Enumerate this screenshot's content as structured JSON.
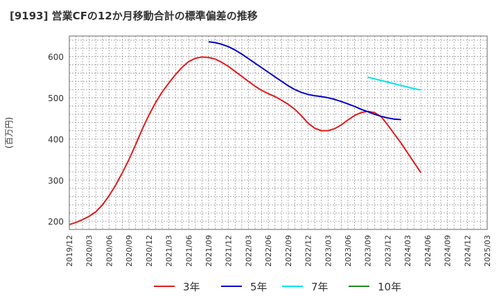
{
  "chart_data": {
    "type": "line",
    "title": "[9193]  営業CFの12か月移動合計の標準偏差の推移",
    "ylabel": "(百万円)",
    "xlabel": "",
    "ylim": [
      180,
      650
    ],
    "yticks": [
      200,
      300,
      400,
      500,
      600
    ],
    "x_start": "2019/12",
    "x_end": "2025/03",
    "xtick_labels": [
      "2019/12",
      "2020/03",
      "2020/06",
      "2020/09",
      "2020/12",
      "2021/03",
      "2021/06",
      "2021/09",
      "2021/12",
      "2022/03",
      "2022/06",
      "2022/09",
      "2022/12",
      "2023/03",
      "2023/06",
      "2023/09",
      "2023/12",
      "2024/03",
      "2024/06",
      "2024/09",
      "2024/12",
      "2025/03"
    ],
    "grid": true,
    "legend_position": "bottom",
    "series": [
      {
        "name": "3年",
        "color": "#e41a1c",
        "points": [
          [
            "2019/12",
            192
          ],
          [
            "2020/01",
            197
          ],
          [
            "2020/02",
            204
          ],
          [
            "2020/03",
            212
          ],
          [
            "2020/04",
            223
          ],
          [
            "2020/05",
            240
          ],
          [
            "2020/06",
            262
          ],
          [
            "2020/07",
            288
          ],
          [
            "2020/08",
            318
          ],
          [
            "2020/09",
            350
          ],
          [
            "2020/10",
            386
          ],
          [
            "2020/11",
            424
          ],
          [
            "2020/12",
            458
          ],
          [
            "2021/01",
            488
          ],
          [
            "2021/02",
            514
          ],
          [
            "2021/03",
            536
          ],
          [
            "2021/04",
            556
          ],
          [
            "2021/05",
            574
          ],
          [
            "2021/06",
            588
          ],
          [
            "2021/07",
            596
          ],
          [
            "2021/08",
            599
          ],
          [
            "2021/09",
            598
          ],
          [
            "2021/10",
            594
          ],
          [
            "2021/11",
            586
          ],
          [
            "2021/12",
            576
          ],
          [
            "2022/01",
            564
          ],
          [
            "2022/02",
            552
          ],
          [
            "2022/03",
            540
          ],
          [
            "2022/04",
            528
          ],
          [
            "2022/05",
            518
          ],
          [
            "2022/06",
            510
          ],
          [
            "2022/07",
            503
          ],
          [
            "2022/08",
            494
          ],
          [
            "2022/09",
            484
          ],
          [
            "2022/10",
            472
          ],
          [
            "2022/11",
            456
          ],
          [
            "2022/12",
            438
          ],
          [
            "2023/01",
            426
          ],
          [
            "2023/02",
            420
          ],
          [
            "2023/03",
            420
          ],
          [
            "2023/04",
            425
          ],
          [
            "2023/05",
            434
          ],
          [
            "2023/06",
            446
          ],
          [
            "2023/07",
            457
          ],
          [
            "2023/08",
            464
          ],
          [
            "2023/09",
            467
          ],
          [
            "2023/10",
            464
          ],
          [
            "2023/11",
            454
          ],
          [
            "2023/12",
            434
          ],
          [
            "2024/01",
            412
          ],
          [
            "2024/02",
            390
          ],
          [
            "2024/03",
            366
          ],
          [
            "2024/04",
            342
          ],
          [
            "2024/05",
            318
          ]
        ]
      },
      {
        "name": "5年",
        "color": "#0000cc",
        "points": [
          [
            "2021/09",
            636
          ],
          [
            "2021/10",
            634
          ],
          [
            "2021/11",
            630
          ],
          [
            "2021/12",
            624
          ],
          [
            "2022/01",
            616
          ],
          [
            "2022/02",
            606
          ],
          [
            "2022/03",
            595
          ],
          [
            "2022/04",
            584
          ],
          [
            "2022/05",
            573
          ],
          [
            "2022/06",
            562
          ],
          [
            "2022/07",
            551
          ],
          [
            "2022/08",
            540
          ],
          [
            "2022/09",
            529
          ],
          [
            "2022/10",
            520
          ],
          [
            "2022/11",
            513
          ],
          [
            "2022/12",
            508
          ],
          [
            "2023/01",
            505
          ],
          [
            "2023/02",
            503
          ],
          [
            "2023/03",
            500
          ],
          [
            "2023/04",
            496
          ],
          [
            "2023/05",
            491
          ],
          [
            "2023/06",
            485
          ],
          [
            "2023/07",
            479
          ],
          [
            "2023/08",
            472
          ],
          [
            "2023/09",
            466
          ],
          [
            "2023/10",
            460
          ],
          [
            "2023/11",
            455
          ],
          [
            "2023/12",
            451
          ],
          [
            "2024/01",
            448
          ],
          [
            "2024/02",
            447
          ]
        ]
      },
      {
        "name": "7年",
        "color": "#00e5ee",
        "points": [
          [
            "2023/09",
            550
          ],
          [
            "2023/10",
            546
          ],
          [
            "2023/11",
            542
          ],
          [
            "2023/12",
            538
          ],
          [
            "2024/01",
            534
          ],
          [
            "2024/02",
            530
          ],
          [
            "2024/03",
            526
          ],
          [
            "2024/04",
            522
          ],
          [
            "2024/05",
            519
          ]
        ]
      },
      {
        "name": "10年",
        "color": "#228b22",
        "points": []
      }
    ]
  }
}
